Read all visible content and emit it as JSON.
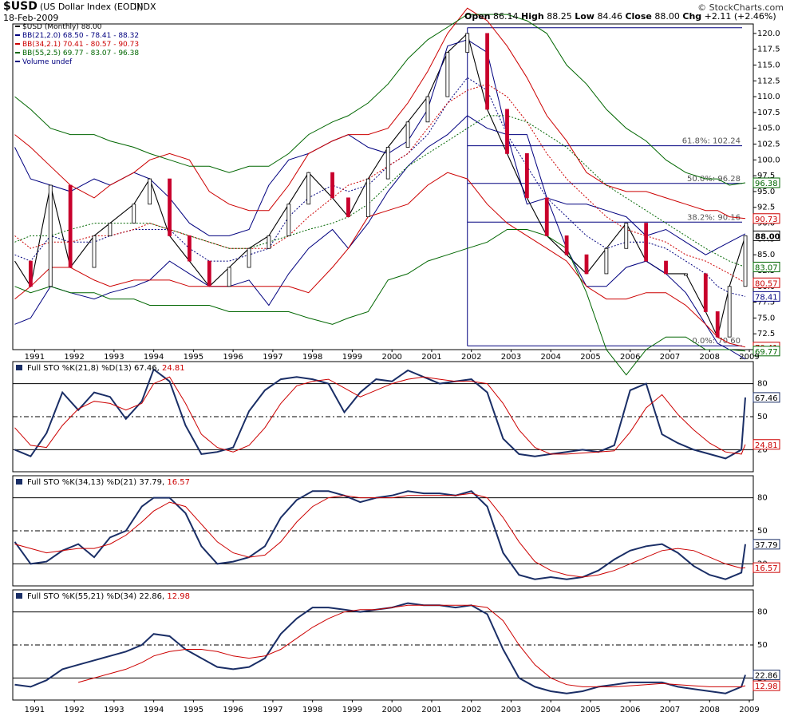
{
  "header": {
    "symbol": "$USD",
    "name": "(US Dollar Index (EOD))",
    "exchange": "INDX",
    "date": "18-Feb-2009",
    "credit": "© StockCharts.com",
    "open_label": "Open",
    "open": "86.14",
    "high_label": "High",
    "high": "88.25",
    "low_label": "Low",
    "low": "84.46",
    "close_label": "Close",
    "close": "88.00",
    "chg_label": "Chg",
    "chg": "+2.11 (+2.46%)"
  },
  "legend": [
    {
      "text": "$USD (Monthly) 88.00",
      "color": "#000000"
    },
    {
      "text": "BB(21,2.0) 68.50 - 78.41 - 88.32",
      "color": "#00007f"
    },
    {
      "text": "BB(34,2.1) 70.41 - 80.57 - 90.73",
      "color": "#cc0000"
    },
    {
      "text": "BB(55,2.5) 69.77 - 83.07 - 96.38",
      "color": "#006600"
    },
    {
      "text": "Volume undef",
      "color": "#00007f"
    }
  ],
  "x_labels": [
    "1991",
    "1992",
    "1993",
    "1994",
    "1995",
    "1996",
    "1997",
    "1998",
    "1999",
    "2000",
    "2001",
    "2002",
    "2003",
    "2004",
    "2005",
    "2006",
    "2007",
    "2008",
    "2009"
  ],
  "chart_data": [
    {
      "type": "line",
      "title": "$USD (Monthly) 88.00",
      "x": [
        1990.6,
        1991.0,
        1991.5,
        1992.0,
        1992.6,
        1993.0,
        1993.6,
        1994.0,
        1994.5,
        1995.0,
        1995.5,
        1996.0,
        1996.5,
        1997.0,
        1997.5,
        1998.0,
        1998.6,
        1999.0,
        1999.5,
        2000.0,
        2000.5,
        2001.0,
        2001.5,
        2002.0,
        2002.5,
        2003.0,
        2003.5,
        2004.0,
        2004.5,
        2005.0,
        2005.5,
        2006.0,
        2006.5,
        2007.0,
        2007.5,
        2008.0,
        2008.3,
        2008.6,
        2009.0
      ],
      "series": [
        {
          "name": "$USD (Monthly) 88.00",
          "color": "#000000",
          "values": [
            84,
            80,
            96,
            83,
            88,
            90,
            93,
            97,
            88,
            84,
            80,
            83,
            86,
            88,
            93,
            98,
            94,
            91,
            97,
            102,
            106,
            110,
            117,
            120,
            108,
            101,
            94,
            88,
            85,
            82,
            86,
            90,
            84,
            82,
            82,
            76,
            72,
            80,
            88
          ]
        },
        {
          "name": "BB(21,2.0) upper",
          "color": "#00007f",
          "values": [
            102,
            97,
            96,
            95,
            97,
            96,
            98,
            97,
            94,
            90,
            88,
            88,
            89,
            96,
            100,
            101,
            103,
            104,
            102,
            101,
            103,
            108,
            118,
            119,
            117,
            104,
            93,
            94,
            93,
            93,
            92,
            91,
            88,
            89,
            87,
            85,
            86,
            87,
            88.32
          ]
        },
        {
          "name": "BB(21,2.0) middle",
          "color": "#00007f",
          "values": [
            85,
            84,
            88,
            87,
            87,
            88,
            89,
            89,
            89,
            86,
            84,
            84,
            85,
            86,
            91,
            94,
            96,
            95,
            96,
            99,
            101,
            104,
            109,
            113,
            111,
            104,
            99,
            94,
            91,
            88,
            86,
            87,
            87,
            86,
            84,
            82,
            80,
            79,
            78.41
          ]
        },
        {
          "name": "BB(21,2.0) lower",
          "color": "#00007f",
          "values": [
            74,
            75,
            80,
            79,
            78,
            79,
            80,
            81,
            84,
            82,
            80,
            80,
            81,
            77,
            82,
            86,
            89,
            86,
            90,
            95,
            99,
            102,
            104,
            107,
            105,
            104,
            104,
            94,
            86,
            80,
            80,
            83,
            84,
            82,
            79,
            74,
            71,
            70,
            68.5
          ]
        },
        {
          "name": "BB(34,2.1) upper",
          "color": "#cc0000",
          "values": [
            104,
            102,
            99,
            96,
            94,
            96,
            98,
            100,
            101,
            100,
            95,
            93,
            92,
            92,
            96,
            101,
            103,
            104,
            104,
            105,
            109,
            114,
            120,
            124,
            122,
            118,
            113,
            107,
            103,
            98,
            96,
            95,
            95,
            94,
            93,
            92,
            92,
            91,
            90.73
          ]
        },
        {
          "name": "BB(34,2.1) middle",
          "color": "#cc0000",
          "values": [
            88,
            86,
            87,
            87,
            88,
            88,
            89,
            90,
            89,
            88,
            87,
            86,
            86,
            86,
            88,
            91,
            94,
            96,
            97,
            99,
            101,
            105,
            109,
            111,
            112,
            110,
            106,
            101,
            97,
            94,
            91,
            89,
            88,
            87,
            85,
            84,
            83,
            82,
            80.57
          ]
        },
        {
          "name": "BB(34,2.1) lower",
          "color": "#cc0000",
          "values": [
            78,
            80,
            83,
            83,
            81,
            80,
            81,
            81,
            81,
            80,
            80,
            80,
            80,
            80,
            80,
            79,
            83,
            86,
            91,
            92,
            93,
            96,
            98,
            97,
            93,
            90,
            88,
            86,
            84,
            80,
            78,
            78,
            79,
            79,
            77,
            74,
            72,
            71,
            70.41
          ]
        },
        {
          "name": "BB(55,2.5) upper",
          "color": "#006600",
          "values": [
            110,
            108,
            105,
            104,
            104,
            103,
            102,
            101,
            100,
            99,
            99,
            98,
            99,
            99,
            101,
            104,
            106,
            107,
            109,
            112,
            116,
            119,
            121,
            123,
            123,
            123,
            122,
            120,
            115,
            112,
            108,
            105,
            103,
            100,
            98,
            97,
            97,
            96,
            96.38
          ]
        },
        {
          "name": "BB(55,2.5) middle",
          "color": "#006600",
          "values": [
            87,
            88,
            88,
            89,
            90,
            90,
            90,
            90,
            89,
            88,
            87,
            86,
            86,
            87,
            88,
            89,
            90,
            91,
            93,
            96,
            99,
            101,
            103,
            105,
            107,
            107,
            106,
            104,
            102,
            99,
            96,
            94,
            92,
            90,
            88,
            86,
            85,
            84,
            83.07
          ]
        },
        {
          "name": "BB(55,2.5) lower",
          "color": "#006600",
          "values": [
            80,
            79,
            80,
            79,
            79,
            78,
            78,
            77,
            77,
            77,
            77,
            76,
            76,
            76,
            76,
            75,
            74,
            75,
            76,
            81,
            82,
            84,
            85,
            86,
            87,
            89,
            89,
            88,
            86,
            79,
            70,
            66,
            70,
            72,
            72,
            70,
            70,
            70,
            69.77
          ]
        }
      ],
      "y_ticks": [
        72.5,
        75.0,
        77.5,
        80.0,
        82.5,
        85.0,
        87.5,
        90.0,
        92.5,
        95.0,
        97.5,
        100.0,
        102.5,
        105.0,
        107.5,
        110.0,
        112.5,
        115.0,
        117.5,
        120.0
      ],
      "ylim": [
        70,
        121.5
      ],
      "price_labels": [
        {
          "value": 88.0,
          "text": "88.00",
          "color": "#000000"
        },
        {
          "value": 83.07,
          "text": "83.07",
          "color": "#006600"
        },
        {
          "value": 80.57,
          "text": "80.57",
          "color": "#cc0000"
        },
        {
          "value": 78.41,
          "text": "78.41",
          "color": "#00007f"
        },
        {
          "value": 90.73,
          "text": "90.73",
          "color": "#cc0000"
        },
        {
          "value": 96.38,
          "text": "96.38",
          "color": "#006600"
        },
        {
          "value": 70.41,
          "text": "70.41",
          "color": "#cc0000"
        },
        {
          "value": 69.77,
          "text": "69.77",
          "color": "#006600"
        }
      ],
      "fibonacci": {
        "start_year": 2002.0,
        "levels": [
          {
            "value": 120.9,
            "text": ""
          },
          {
            "value": 102.24,
            "text": "61.8%: 102.24"
          },
          {
            "value": 96.28,
            "text": "50.0%: 96.28"
          },
          {
            "value": 90.16,
            "text": "38.2%: 90.16"
          },
          {
            "value": 70.6,
            "text": "0.0%: 70.60"
          }
        ]
      }
    },
    {
      "type": "line",
      "title": "Full STO %K(21,8) %D(13)",
      "k_value": "67.46",
      "d_value": "24.81",
      "x": [
        1990.6,
        1991.0,
        1991.4,
        1991.8,
        1992.2,
        1992.6,
        1993.0,
        1993.4,
        1993.8,
        1994.1,
        1994.5,
        1994.9,
        1995.3,
        1995.7,
        1996.1,
        1996.5,
        1996.9,
        1997.3,
        1997.7,
        1998.1,
        1998.5,
        1998.9,
        1999.3,
        1999.7,
        2000.1,
        2000.5,
        2000.9,
        2001.3,
        2001.7,
        2002.1,
        2002.5,
        2002.9,
        2003.3,
        2003.7,
        2004.1,
        2004.5,
        2004.9,
        2005.3,
        2005.7,
        2006.1,
        2006.5,
        2006.9,
        2007.3,
        2007.7,
        2008.1,
        2008.5,
        2008.9,
        2009.0
      ],
      "series": [
        {
          "name": "%K",
          "color": "#1a2e66",
          "values": [
            20,
            14,
            35,
            72,
            56,
            72,
            68,
            48,
            64,
            93,
            82,
            42,
            16,
            18,
            22,
            55,
            74,
            84,
            86,
            84,
            80,
            54,
            72,
            84,
            82,
            92,
            86,
            80,
            82,
            84,
            72,
            30,
            16,
            14,
            16,
            18,
            20,
            18,
            24,
            74,
            80,
            34,
            26,
            20,
            16,
            12,
            20,
            67.46
          ]
        },
        {
          "name": "%D",
          "color": "#cc0000",
          "values": [
            40,
            24,
            22,
            42,
            57,
            64,
            62,
            56,
            62,
            80,
            86,
            62,
            34,
            22,
            18,
            24,
            40,
            62,
            78,
            82,
            84,
            76,
            68,
            74,
            80,
            84,
            86,
            84,
            82,
            82,
            80,
            62,
            38,
            22,
            16,
            16,
            17,
            18,
            19,
            36,
            58,
            70,
            52,
            38,
            26,
            18,
            16,
            24.81
          ]
        }
      ],
      "y_ticks": [
        20,
        50,
        80
      ],
      "ylim": [
        0,
        100
      ]
    },
    {
      "type": "line",
      "title": "Full STO %K(34,13) %D(21)",
      "k_value": "37.79",
      "d_value": "16.57",
      "x": [
        1990.6,
        1991.0,
        1991.4,
        1991.8,
        1992.2,
        1992.6,
        1993.0,
        1993.4,
        1993.8,
        1994.1,
        1994.5,
        1994.9,
        1995.3,
        1995.7,
        1996.1,
        1996.5,
        1996.9,
        1997.3,
        1997.7,
        1998.1,
        1998.5,
        1998.9,
        1999.3,
        1999.7,
        2000.1,
        2000.5,
        2000.9,
        2001.3,
        2001.7,
        2002.1,
        2002.5,
        2002.9,
        2003.3,
        2003.7,
        2004.1,
        2004.5,
        2004.9,
        2005.3,
        2005.7,
        2006.1,
        2006.5,
        2006.9,
        2007.3,
        2007.7,
        2008.1,
        2008.5,
        2008.9,
        2009.0
      ],
      "series": [
        {
          "name": "%K",
          "color": "#1a2e66",
          "values": [
            40,
            20,
            22,
            32,
            38,
            26,
            44,
            50,
            72,
            80,
            80,
            66,
            36,
            20,
            22,
            26,
            36,
            62,
            78,
            86,
            86,
            82,
            76,
            80,
            82,
            86,
            84,
            84,
            82,
            86,
            72,
            30,
            10,
            6,
            8,
            6,
            8,
            14,
            24,
            32,
            36,
            38,
            30,
            18,
            10,
            6,
            12,
            37.79
          ]
        },
        {
          "name": "%D",
          "color": "#cc0000",
          "values": [
            38,
            34,
            30,
            32,
            34,
            34,
            38,
            46,
            58,
            68,
            76,
            72,
            56,
            40,
            30,
            26,
            28,
            40,
            58,
            72,
            80,
            82,
            80,
            80,
            80,
            82,
            82,
            82,
            82,
            84,
            80,
            62,
            40,
            22,
            14,
            10,
            8,
            10,
            14,
            20,
            26,
            32,
            34,
            32,
            26,
            20,
            16,
            16.57
          ]
        }
      ],
      "y_ticks": [
        20,
        50,
        80
      ],
      "ylim": [
        0,
        100
      ]
    },
    {
      "type": "line",
      "title": "Full STO %K(55,21) %D(34)",
      "k_value": "22.86",
      "d_value": "12.98",
      "x": [
        1990.6,
        1991.0,
        1991.4,
        1991.8,
        1992.2,
        1992.6,
        1993.0,
        1993.4,
        1993.8,
        1994.1,
        1994.5,
        1994.9,
        1995.3,
        1995.7,
        1996.1,
        1996.5,
        1996.9,
        1997.3,
        1997.7,
        1998.1,
        1998.5,
        1998.9,
        1999.3,
        1999.7,
        2000.1,
        2000.5,
        2000.9,
        2001.3,
        2001.7,
        2002.1,
        2002.5,
        2002.9,
        2003.3,
        2003.7,
        2004.1,
        2004.5,
        2004.9,
        2005.3,
        2005.7,
        2006.1,
        2006.5,
        2006.9,
        2007.3,
        2007.7,
        2008.1,
        2008.5,
        2008.9,
        2009.0
      ],
      "series": [
        {
          "name": "%K",
          "color": "#1a2e66",
          "values": [
            14,
            12,
            18,
            28,
            32,
            36,
            40,
            44,
            50,
            60,
            58,
            46,
            38,
            30,
            28,
            30,
            38,
            60,
            74,
            84,
            84,
            82,
            80,
            82,
            84,
            88,
            86,
            86,
            84,
            86,
            78,
            46,
            20,
            12,
            8,
            6,
            8,
            12,
            14,
            16,
            16,
            16,
            12,
            10,
            8,
            6,
            12,
            22.86
          ]
        },
        {
          "name": "%D",
          "color": "#cc0000",
          "values": [
            null,
            null,
            null,
            null,
            16,
            20,
            24,
            28,
            34,
            40,
            44,
            46,
            46,
            44,
            40,
            38,
            40,
            46,
            56,
            66,
            74,
            80,
            82,
            82,
            84,
            86,
            86,
            86,
            86,
            86,
            84,
            72,
            50,
            32,
            20,
            14,
            12,
            12,
            12,
            13,
            14,
            15,
            14,
            13,
            12,
            12,
            12,
            12.98
          ]
        }
      ],
      "y_ticks": [
        20,
        50,
        80
      ],
      "ylim": [
        0,
        100
      ]
    }
  ]
}
